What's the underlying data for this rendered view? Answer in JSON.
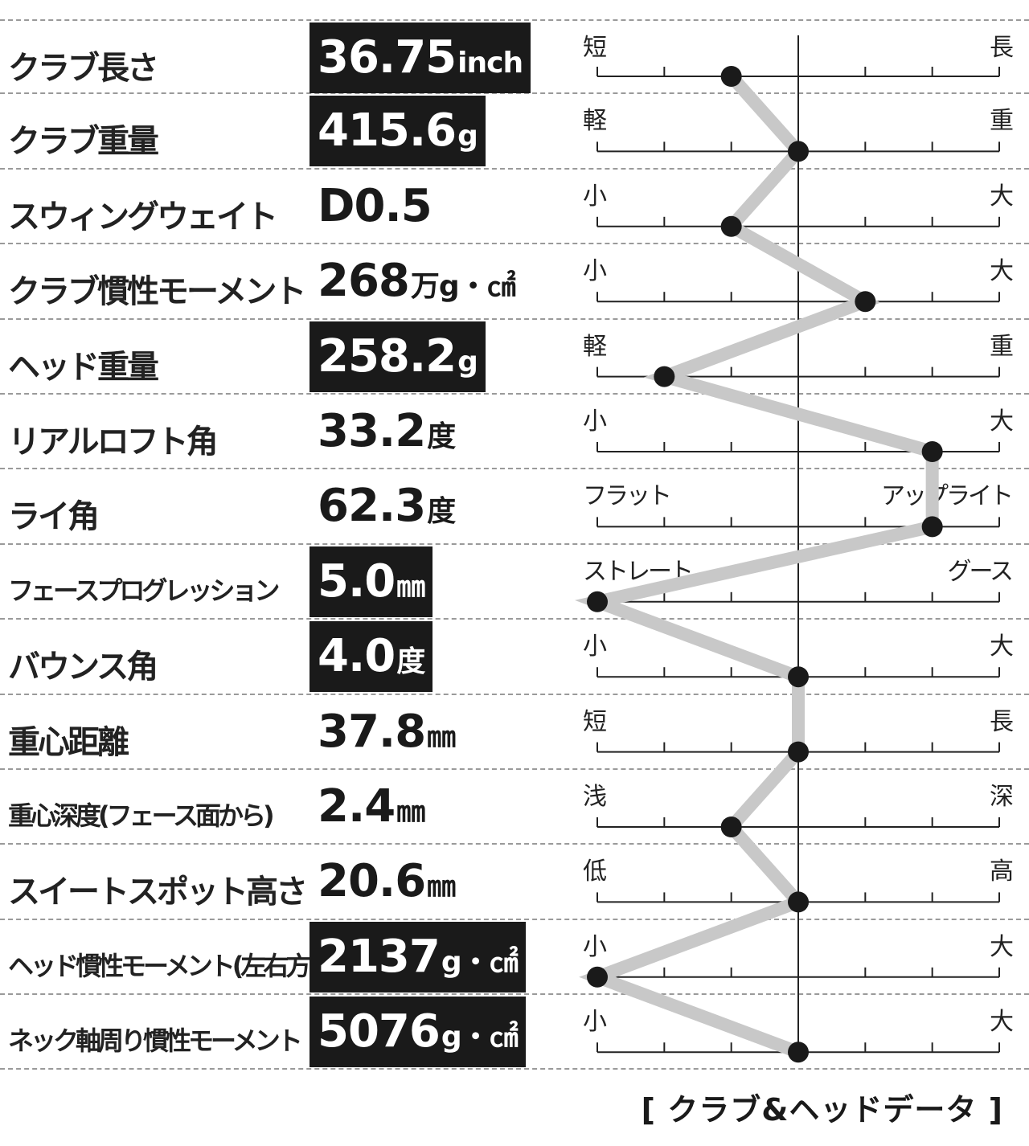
{
  "caption": "[ クラブ&ヘッドデータ ]",
  "colors": {
    "highlight_bg": "#1a1a1a",
    "line": "#c8c8c8",
    "dot": "#1a1a1a"
  },
  "chart_data": {
    "type": "line",
    "scale": [
      -3,
      3
    ],
    "ticks_per_row": 7,
    "rows": [
      {
        "label": "クラブ長さ",
        "value": "36.75",
        "unit": "inch",
        "highlight": true,
        "low": "短",
        "high": "長",
        "position": -1
      },
      {
        "label": "クラブ重量",
        "value": "415.6",
        "unit": "g",
        "highlight": true,
        "low": "軽",
        "high": "重",
        "position": 0
      },
      {
        "label": "スウィングウェイト",
        "value": "D0.5",
        "unit": "",
        "highlight": false,
        "low": "小",
        "high": "大",
        "position": -1
      },
      {
        "label": "クラブ慣性モーメント",
        "value": "268",
        "unit": "万g・㎠",
        "highlight": false,
        "low": "小",
        "high": "大",
        "position": 1
      },
      {
        "label": "ヘッド重量",
        "value": "258.2",
        "unit": "g",
        "highlight": true,
        "low": "軽",
        "high": "重",
        "position": -2
      },
      {
        "label": "リアルロフト角",
        "value": "33.2",
        "unit": "度",
        "highlight": false,
        "low": "小",
        "high": "大",
        "position": 2
      },
      {
        "label": "ライ角",
        "value": "62.3",
        "unit": "度",
        "highlight": false,
        "low": "フラット",
        "high": "アップライト",
        "position": 2
      },
      {
        "label": "フェースプログレッション",
        "value": "5.0",
        "unit": "㎜",
        "highlight": true,
        "low": "ストレート",
        "high": "グース",
        "position": -3
      },
      {
        "label": "バウンス角",
        "value": "4.0",
        "unit": "度",
        "highlight": true,
        "low": "小",
        "high": "大",
        "position": 0
      },
      {
        "label": "重心距離",
        "value": "37.8",
        "unit": "㎜",
        "highlight": false,
        "low": "短",
        "high": "長",
        "position": 0
      },
      {
        "label": "重心深度(フェース面から)",
        "value": "2.4",
        "unit": "㎜",
        "highlight": false,
        "low": "浅",
        "high": "深",
        "position": -1
      },
      {
        "label": "スイートスポット高さ",
        "value": "20.6",
        "unit": "㎜",
        "highlight": false,
        "low": "低",
        "high": "高",
        "position": 0
      },
      {
        "label": "ヘッド慣性モーメント(左右方向)",
        "value": "2137",
        "unit": "g・㎠",
        "highlight": true,
        "low": "小",
        "high": "大",
        "position": -3
      },
      {
        "label": "ネック軸周り慣性モーメント",
        "value": "5076",
        "unit": "g・㎠",
        "highlight": true,
        "low": "小",
        "high": "大",
        "position": 0
      }
    ]
  }
}
